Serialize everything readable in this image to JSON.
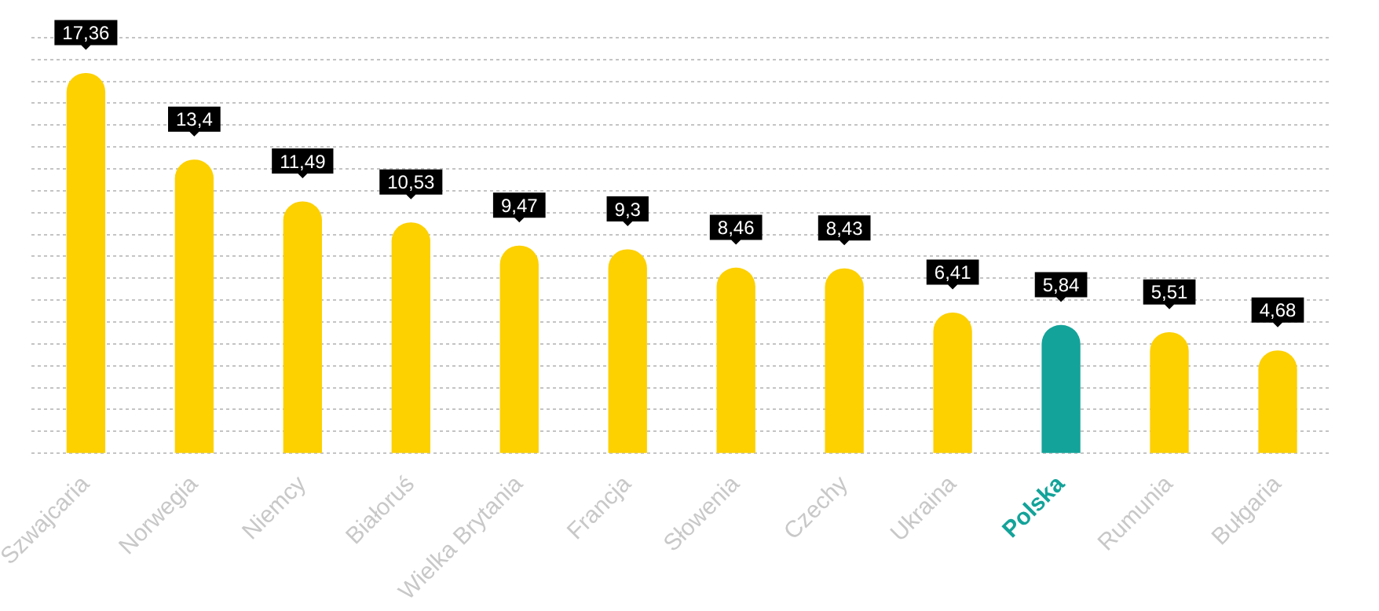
{
  "chart_data": {
    "type": "bar",
    "categories": [
      "Szwajcaria",
      "Norwegia",
      "Niemcy",
      "Białoruś",
      "Wielka Brytania",
      "Francja",
      "Słowenia",
      "Czechy",
      "Ukraina",
      "Polska",
      "Rumunia",
      "Bułgaria"
    ],
    "values": [
      17.36,
      13.4,
      11.49,
      10.53,
      9.47,
      9.3,
      8.46,
      8.43,
      6.41,
      5.84,
      5.51,
      4.68
    ],
    "value_labels": [
      "17,36",
      "13,4",
      "11,49",
      "10,53",
      "9,47",
      "9,3",
      "8,46",
      "8,43",
      "6,41",
      "5,84",
      "5,51",
      "4,68"
    ],
    "colors": [
      "#fdd000",
      "#fdd000",
      "#fdd000",
      "#fdd000",
      "#fdd000",
      "#fdd000",
      "#fdd000",
      "#fdd000",
      "#fdd000",
      "#13a39a",
      "#fdd000",
      "#fdd000"
    ],
    "tick_labels": "x",
    "grid": "y",
    "legend": false
  }
}
